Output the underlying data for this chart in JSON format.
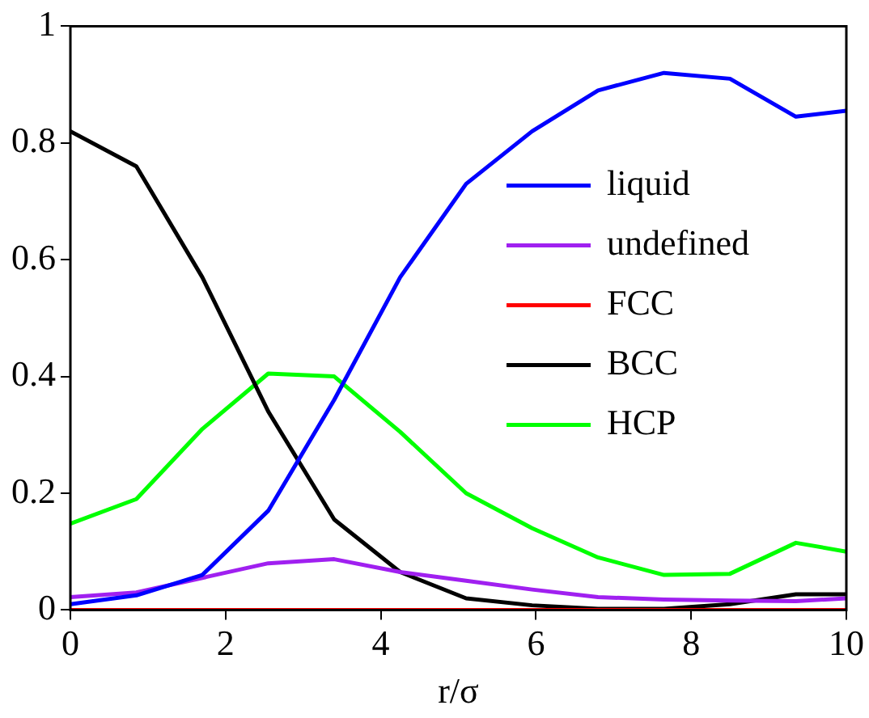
{
  "chart_data": {
    "type": "line",
    "xlabel": "r/σ",
    "x": [
      0,
      0.85,
      1.7,
      2.55,
      3.4,
      4.25,
      5.1,
      5.95,
      6.8,
      7.65,
      8.5,
      9.35,
      10
    ],
    "series": [
      {
        "name": "liquid",
        "color": "#0000ff",
        "values": [
          0.01,
          0.025,
          0.06,
          0.17,
          0.36,
          0.57,
          0.73,
          0.82,
          0.89,
          0.92,
          0.91,
          0.845,
          0.855
        ]
      },
      {
        "name": "undefined",
        "color": "#a020f0",
        "values": [
          0.022,
          0.03,
          0.055,
          0.08,
          0.087,
          0.065,
          0.05,
          0.035,
          0.022,
          0.018,
          0.016,
          0.015,
          0.02
        ]
      },
      {
        "name": "FCC",
        "color": "#ff0000",
        "values": [
          0,
          0,
          0,
          0,
          0,
          0,
          0,
          0,
          0,
          0,
          0,
          0,
          0
        ]
      },
      {
        "name": "BCC",
        "color": "#000000",
        "values": [
          0.82,
          0.76,
          0.57,
          0.34,
          0.155,
          0.065,
          0.02,
          0.008,
          0.002,
          0.002,
          0.01,
          0.027,
          0.027
        ]
      },
      {
        "name": "HCP",
        "color": "#00ff00",
        "values": [
          0.148,
          0.19,
          0.31,
          0.405,
          0.4,
          0.305,
          0.2,
          0.14,
          0.09,
          0.06,
          0.062,
          0.115,
          0.1
        ]
      }
    ],
    "xlim": [
      0,
      10
    ],
    "xticks": [
      0,
      2,
      4,
      6,
      8,
      10
    ],
    "ylim": [
      0,
      1
    ],
    "yticks": [
      0,
      0.2,
      0.4,
      0.6,
      0.8,
      1
    ],
    "grid": false,
    "legend": "right",
    "marker": "none",
    "line_style": "solid"
  }
}
